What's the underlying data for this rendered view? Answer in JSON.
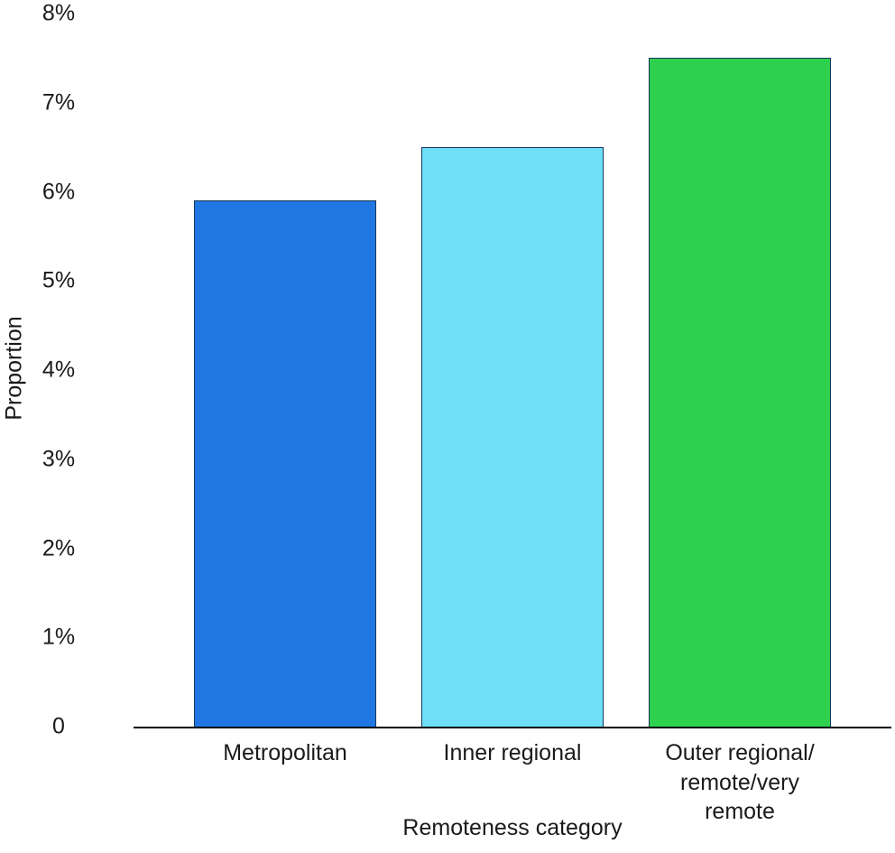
{
  "chart_data": {
    "type": "bar",
    "categories": [
      "Metropolitan",
      "Inner regional",
      "Outer regional/\nremote/very remote"
    ],
    "values": [
      5.9,
      6.5,
      7.5
    ],
    "colors": [
      "#2077e4",
      "#6edff7",
      "#2ed14e"
    ],
    "bar_border_color": "#14375a",
    "title": "",
    "xlabel": "Remoteness category",
    "ylabel": "Proportion",
    "ylim": [
      0,
      8
    ],
    "yticks": [
      0,
      1,
      2,
      3,
      4,
      5,
      6,
      7,
      8
    ],
    "ytick_labels": [
      "0",
      "1%",
      "2%",
      "3%",
      "4%",
      "5%",
      "6%",
      "7%",
      "8%"
    ],
    "grid": false,
    "legend": "none",
    "bar_width_pct": 24,
    "edge_pad_pct": 5
  }
}
